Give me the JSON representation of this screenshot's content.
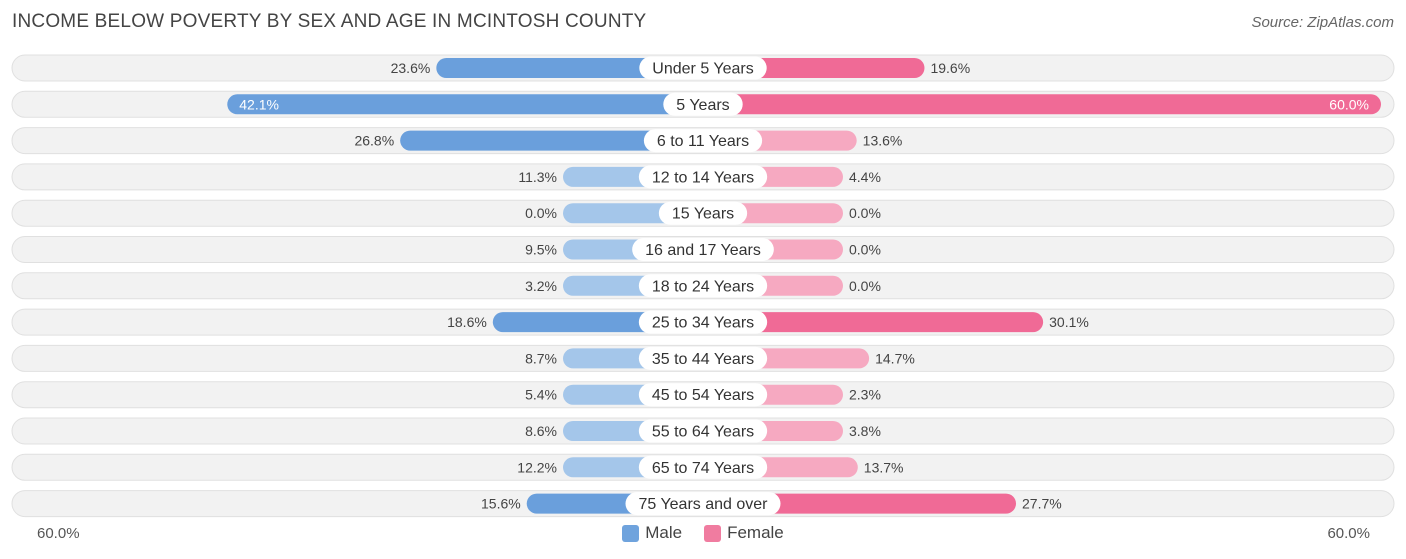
{
  "header": {
    "title": "INCOME BELOW POVERTY BY SEX AND AGE IN MCINTOSH COUNTY",
    "source": "Source: ZipAtlas.com"
  },
  "axis": {
    "left_label": "60.0%",
    "right_label": "60.0%"
  },
  "legend": [
    {
      "name": "Male",
      "color": "#6fa3dd"
    },
    {
      "name": "Female",
      "color": "#f07ca0"
    }
  ],
  "chart_data": {
    "type": "bar",
    "orientation": "horizontal-diverging",
    "title": "INCOME BELOW POVERTY BY SEX AND AGE IN MCINTOSH COUNTY",
    "xlim": [
      -60,
      60
    ],
    "categories": [
      "Under 5 Years",
      "5 Years",
      "6 to 11 Years",
      "12 to 14 Years",
      "15 Years",
      "16 and 17 Years",
      "18 to 24 Years",
      "25 to 34 Years",
      "35 to 44 Years",
      "45 to 54 Years",
      "55 to 64 Years",
      "65 to 74 Years",
      "75 Years and over"
    ],
    "series": [
      {
        "name": "Male",
        "values": [
          23.6,
          42.1,
          26.8,
          11.3,
          0.0,
          9.5,
          3.2,
          18.6,
          8.7,
          5.4,
          8.6,
          12.2,
          15.6
        ],
        "labels": [
          "23.6%",
          "42.1%",
          "26.8%",
          "11.3%",
          "0.0%",
          "9.5%",
          "3.2%",
          "18.6%",
          "8.7%",
          "5.4%",
          "8.6%",
          "12.2%",
          "15.6%"
        ]
      },
      {
        "name": "Female",
        "values": [
          19.6,
          60.0,
          13.6,
          4.4,
          0.0,
          0.0,
          0.0,
          30.1,
          14.7,
          2.3,
          3.8,
          13.7,
          27.7
        ],
        "labels": [
          "19.6%",
          "60.0%",
          "13.6%",
          "4.4%",
          "0.0%",
          "0.0%",
          "0.0%",
          "30.1%",
          "14.7%",
          "2.3%",
          "3.8%",
          "13.7%",
          "27.7%"
        ]
      }
    ],
    "colors": {
      "male_dark": "#6a9fdc",
      "male_light": "#a4c6ea",
      "female_dark": "#f06a96",
      "female_light": "#f6a9c1",
      "row_bg": "#f2f2f2",
      "row_border": "#e0e0e0"
    },
    "legend_position": "bottom-center"
  }
}
